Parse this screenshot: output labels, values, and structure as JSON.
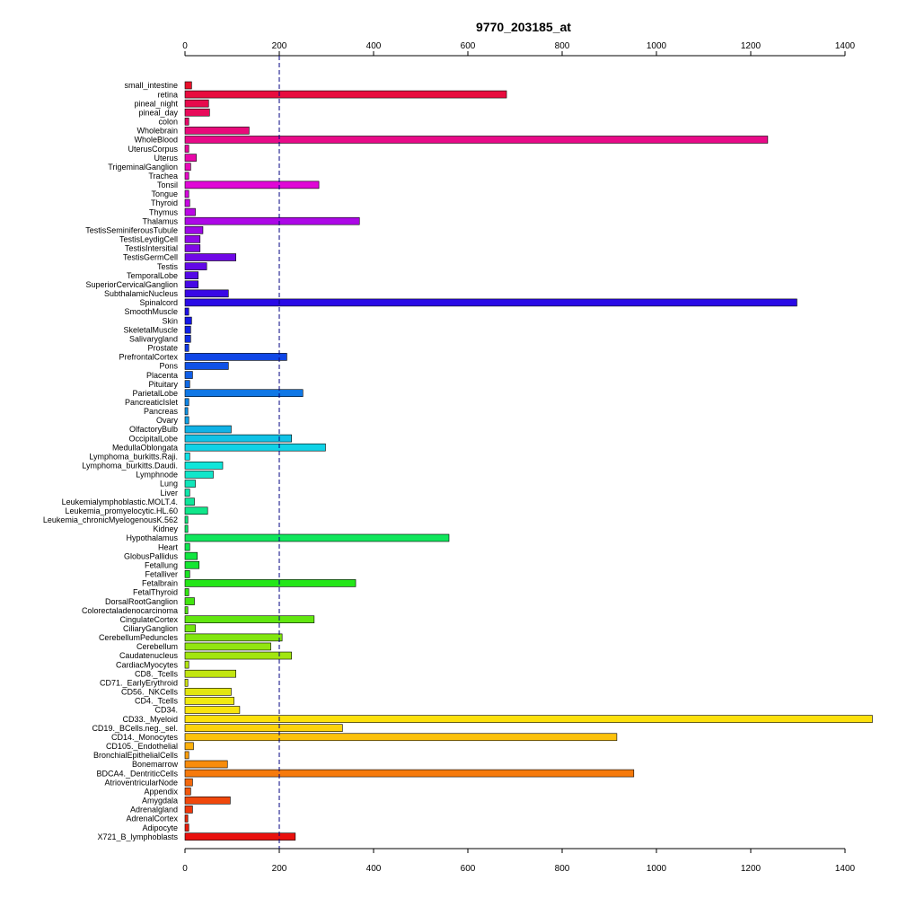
{
  "chart_data": {
    "type": "bar",
    "orientation": "horizontal",
    "title": "9770_203185_at",
    "xlim": [
      0,
      1400
    ],
    "x_ticks": [
      0,
      200,
      400,
      600,
      800,
      1000,
      1200,
      1400
    ],
    "x_tick_labels": [
      "0",
      "200",
      "400",
      "600",
      "800",
      "1000",
      "1200",
      "1400"
    ],
    "axes": "top-and-bottom",
    "reference_line": 200,
    "grid": false,
    "categories": [
      "small_intestine",
      "retina",
      "pineal_night",
      "pineal_day",
      "colon",
      "Wholebrain",
      "WholeBlood",
      "UterusCorpus",
      "Uterus",
      "TrigeminalGanglion",
      "Trachea",
      "Tonsil",
      "Tongue",
      "Thyroid",
      "Thymus",
      "Thalamus",
      "TestisSeminiferousTubule",
      "TestisLeydigCell",
      "TestisIntersitial",
      "TestisGermCell",
      "Testis",
      "TemporalLobe",
      "SuperiorCervicalGanglion",
      "SubthalamicNucleus",
      "Spinalcord",
      "SmoothMuscle",
      "Skin",
      "SkeletalMuscle",
      "Salivarygland",
      "Prostate",
      "PrefrontalCortex",
      "Pons",
      "Placenta",
      "Pituitary",
      "ParietalLobe",
      "PancreaticIslet",
      "Pancreas",
      "Ovary",
      "OlfactoryBulb",
      "OccipitalLobe",
      "MedullaOblongata",
      "Lymphoma_burkitts.Raji.",
      "Lymphoma_burkitts.Daudi.",
      "Lymphnode",
      "Lung",
      "Liver",
      "Leukemialymphoblastic.MOLT.4.",
      "Leukemia_promyelocytic.HL.60",
      "Leukemia_chronicMyelogenousK.562",
      "Kidney",
      "Hypothalamus",
      "Heart",
      "GlobusPallidus",
      "Fetallung",
      "Fetalliver",
      "Fetalbrain",
      "FetalThyroid",
      "DorsalRootGanglion",
      "Colorectaladenocarcinoma",
      "CingulateCortex",
      "CiliaryGanglion",
      "CerebellumPeduncles",
      "Cerebellum",
      "Caudatenucleus",
      "CardiacMyocytes",
      "CD8._Tcells",
      "CD71._EarlyErythroid",
      "CD56._NKCells",
      "CD4._Tcells",
      "CD34.",
      "CD33._Myeloid",
      "CD19._BCells.neg._sel.",
      "CD14._Monocytes",
      "CD105._Endothelial",
      "BronchialEpithelialCells",
      "Bonemarrow",
      "BDCA4._DentriticCells",
      "AtrioventricularNode",
      "Appendix",
      "Amygdala",
      "Adrenalgland",
      "AdrenalCortex",
      "Adipocyte",
      "X721_B_lymphoblasts"
    ],
    "values": [
      14,
      682,
      50,
      52,
      8,
      136,
      1236,
      8,
      24,
      12,
      8,
      284,
      8,
      10,
      22,
      370,
      38,
      32,
      32,
      108,
      46,
      28,
      28,
      92,
      1298,
      8,
      14,
      12,
      12,
      8,
      216,
      92,
      16,
      10,
      250,
      8,
      6,
      8,
      98,
      226,
      298,
      10,
      80,
      60,
      22,
      10,
      20,
      48,
      6,
      6,
      560,
      10,
      26,
      30,
      10,
      362,
      8,
      20,
      6,
      274,
      22,
      206,
      182,
      226,
      8,
      108,
      6,
      98,
      104,
      116,
      1458,
      334,
      916,
      18,
      8,
      90,
      952,
      16,
      12,
      96,
      16,
      6,
      8,
      234
    ],
    "colors": [
      "#e8102a",
      "#e80c3e",
      "#e80a4c",
      "#e80a5a",
      "#e8086a",
      "#e80a7a",
      "#e80a88",
      "#e80898",
      "#e808a8",
      "#e808b8",
      "#e808c8",
      "#e008d6",
      "#d808de",
      "#c808e2",
      "#ba08e4",
      "#ac08e6",
      "#9c08e6",
      "#8e08e6",
      "#8008e6",
      "#7008e6",
      "#6208e6",
      "#5408e6",
      "#4608e6",
      "#3808e6",
      "#2a0ae6",
      "#1e10e6",
      "#1418e6",
      "#1022e6",
      "#102ee6",
      "#103ae6",
      "#1046e6",
      "#1052e6",
      "#105ee6",
      "#106ae6",
      "#1078e6",
      "#1086e6",
      "#1094e6",
      "#10a2e6",
      "#10b2e6",
      "#10c2e6",
      "#10d2e6",
      "#10e2e6",
      "#10e6da",
      "#10e6ca",
      "#10e6ba",
      "#10e6aa",
      "#10e69a",
      "#10e68a",
      "#10e67a",
      "#10e66a",
      "#10e65c",
      "#10e64e",
      "#10e640",
      "#14e632",
      "#1ae624",
      "#24e618",
      "#32e610",
      "#42e610",
      "#52e610",
      "#62e610",
      "#72e610",
      "#82e610",
      "#92e610",
      "#a2e610",
      "#b2e610",
      "#c2e610",
      "#d2e610",
      "#e2e610",
      "#f0ea10",
      "#f8e40e",
      "#fce00c",
      "#fcd20c",
      "#fcc20c",
      "#fcb00c",
      "#fa9e0c",
      "#f88c0c",
      "#f67a0c",
      "#f4680c",
      "#f2580c",
      "#f0480c",
      "#ee380c",
      "#ec2a0c",
      "#ea1c0c",
      "#e8100e"
    ]
  }
}
